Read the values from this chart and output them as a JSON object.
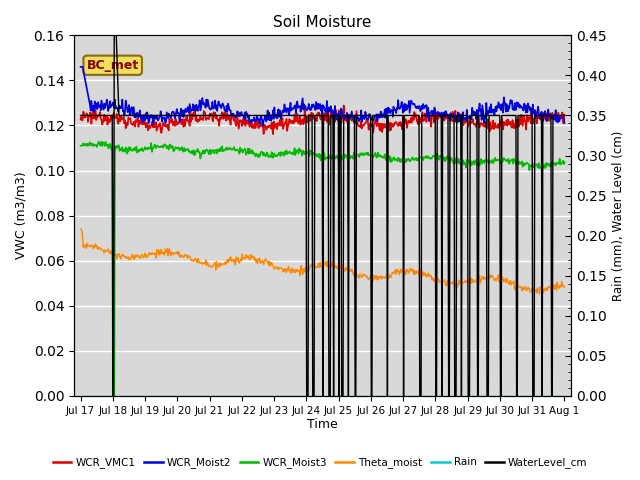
{
  "title": "Soil Moisture",
  "xlabel": "Time",
  "ylabel_left": "VWC (m3/m3)",
  "ylabel_right": "Rain (mm), Water Level (cm)",
  "ylim_left": [
    0.0,
    0.16
  ],
  "ylim_right": [
    0.0,
    0.45
  ],
  "yticks_left": [
    0.0,
    0.02,
    0.04,
    0.06,
    0.08,
    0.1,
    0.12,
    0.14,
    0.16
  ],
  "yticks_right": [
    0.0,
    0.05,
    0.1,
    0.15,
    0.2,
    0.25,
    0.3,
    0.35,
    0.4,
    0.45
  ],
  "background_color": "#d8d8d8",
  "grid_color": "#ffffff",
  "bc_met_label": "BC_met",
  "colors": {
    "wcr_vmc1": "#dd0000",
    "wcr_moist2": "#0000dd",
    "wcr_moist3": "#00bb00",
    "theta_moist": "#ff8800",
    "rain": "#00cccc",
    "water_level": "#000000"
  },
  "day_labels": [
    "Jul 17",
    "Jul 18",
    "Jul 19",
    "Jul 20",
    "Jul 21",
    "Jul 22",
    "Jul 23",
    "Jul 24",
    "Jul 25",
    "Jul 26",
    "Jul 27",
    "Jul 28",
    "Jul 29",
    "Jul 30",
    "Jul 31",
    "Aug 1"
  ],
  "legend_labels": [
    "WCR_VMC1",
    "WCR_Moist2",
    "WCR_Moist3",
    "Theta_moist",
    "Rain",
    "WaterLevel_cm"
  ]
}
